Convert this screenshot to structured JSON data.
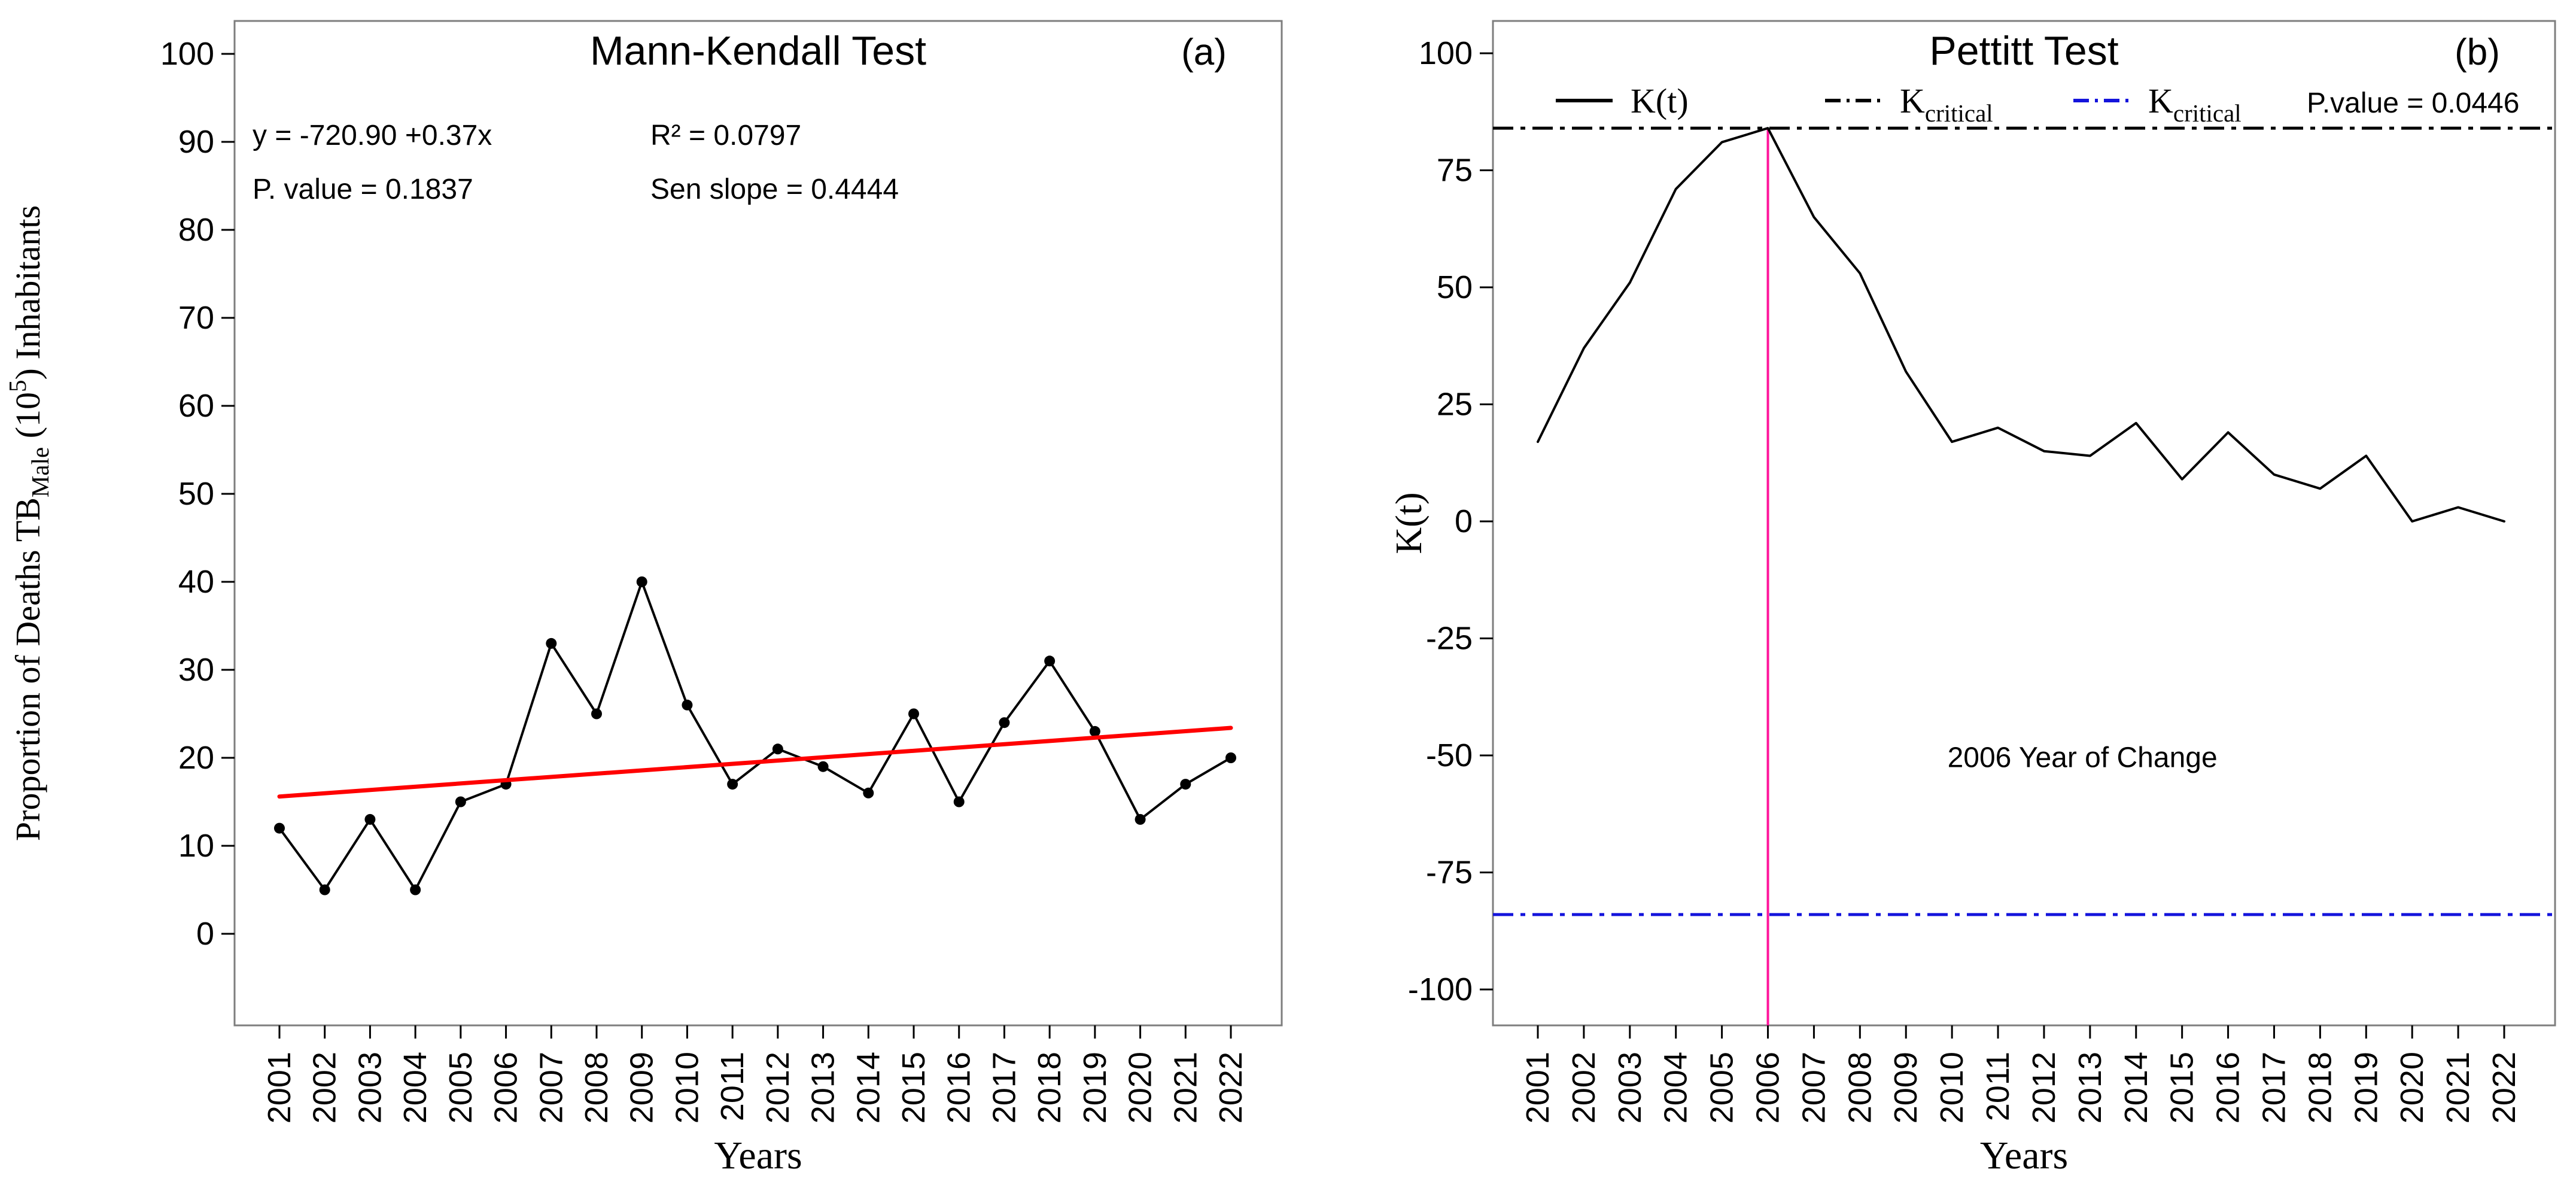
{
  "figure": {
    "background": "#FFFFFF",
    "box_color": "#7E7E7E",
    "tick_color": "#000000"
  },
  "chart_data": [
    {
      "type": "line",
      "panel": "a",
      "title": "Mann-Kendall Test",
      "panel_label": "(a)",
      "xlabel": "Years",
      "ylabel_parts": [
        {
          "text": "Proportion of Deaths TB"
        },
        {
          "text": "Male",
          "style": "sub"
        },
        {
          "text": " (10"
        },
        {
          "text": "5",
          "style": "sup"
        },
        {
          "text": ") Inhabitants"
        }
      ],
      "x": [
        "2001",
        "2002",
        "2003",
        "2004",
        "2005",
        "2006",
        "2007",
        "2008",
        "2009",
        "2010",
        "2011",
        "2012",
        "2013",
        "2014",
        "2015",
        "2016",
        "2017",
        "2018",
        "2019",
        "2020",
        "2021",
        "2022"
      ],
      "series": [
        {
          "name": "TB male death proportion",
          "color": "#000000",
          "marker": "circle",
          "values": [
            12,
            5,
            13,
            5,
            15,
            17,
            33,
            25,
            40,
            26,
            17,
            21,
            19,
            16,
            25,
            15,
            24,
            31,
            23,
            13,
            17,
            20
          ]
        }
      ],
      "ylim": [
        0,
        100
      ],
      "yticks": [
        "0",
        "10",
        "20",
        "30",
        "40",
        "50",
        "60",
        "70",
        "80",
        "90",
        "100"
      ],
      "grid": false,
      "legend_position": "none",
      "trend_line": {
        "name": "linear trend",
        "color": "#FF0000",
        "start_year": "2001",
        "start_value": 15.6,
        "end_year": "2022",
        "end_value": 23.4
      },
      "annotations": [
        {
          "text": "y = -720.90 +0.37x",
          "col": 0,
          "row": 0
        },
        {
          "text": "P. value = 0.1837",
          "col": 0,
          "row": 1
        },
        {
          "text": "R² = 0.0797",
          "col": 1,
          "row": 0
        },
        {
          "text": "Sen slope = 0.4444",
          "col": 1,
          "row": 1
        }
      ]
    },
    {
      "type": "line",
      "panel": "b",
      "title": "Pettitt Test",
      "panel_label": "(b)",
      "xlabel": "Years",
      "ylabel_parts": [
        {
          "text": "K(t)"
        }
      ],
      "x": [
        "2001",
        "2002",
        "2003",
        "2004",
        "2005",
        "2006",
        "2007",
        "2008",
        "2009",
        "2010",
        "2011",
        "2012",
        "2013",
        "2014",
        "2015",
        "2016",
        "2017",
        "2018",
        "2019",
        "2020",
        "2021",
        "2022"
      ],
      "series": [
        {
          "name": "K(t)",
          "color": "#000000",
          "marker": "none",
          "values": [
            17,
            37,
            51,
            71,
            81,
            84,
            65,
            53,
            32,
            17,
            20,
            15,
            14,
            21,
            9,
            19,
            10,
            7,
            14,
            0,
            3,
            0
          ]
        }
      ],
      "ylim": [
        -100,
        100
      ],
      "yticks": [
        "100",
        "75",
        "50",
        "25",
        "0",
        "-25",
        "-50",
        "-75",
        "-100"
      ],
      "grid": false,
      "critical_lines": [
        {
          "name": "upper critical",
          "value": 84,
          "color": "#000000"
        },
        {
          "name": "lower critical",
          "value": -84,
          "color": "#1414DC"
        }
      ],
      "legend": {
        "position": "top",
        "items": [
          {
            "dash": "solid",
            "color": "#000000",
            "label_parts": [
              {
                "text": "K(t)"
              }
            ]
          },
          {
            "dash": "dashdot",
            "color": "#000000",
            "label_parts": [
              {
                "text": "K"
              },
              {
                "text": "critical",
                "style": "sub"
              }
            ]
          },
          {
            "dash": "dashdot",
            "color": "#1414DC",
            "label_parts": [
              {
                "text": "K"
              },
              {
                "text": "critical",
                "style": "sub"
              }
            ]
          }
        ],
        "p_value_label": "P.value = 0.0446"
      },
      "change_point": {
        "year": "2006",
        "line_color": "#FF149B",
        "label": "2006 Year of Change",
        "label_color": "#FF2D9E",
        "label_x_fraction": 0.555,
        "label_y_value": -52.5
      }
    }
  ]
}
